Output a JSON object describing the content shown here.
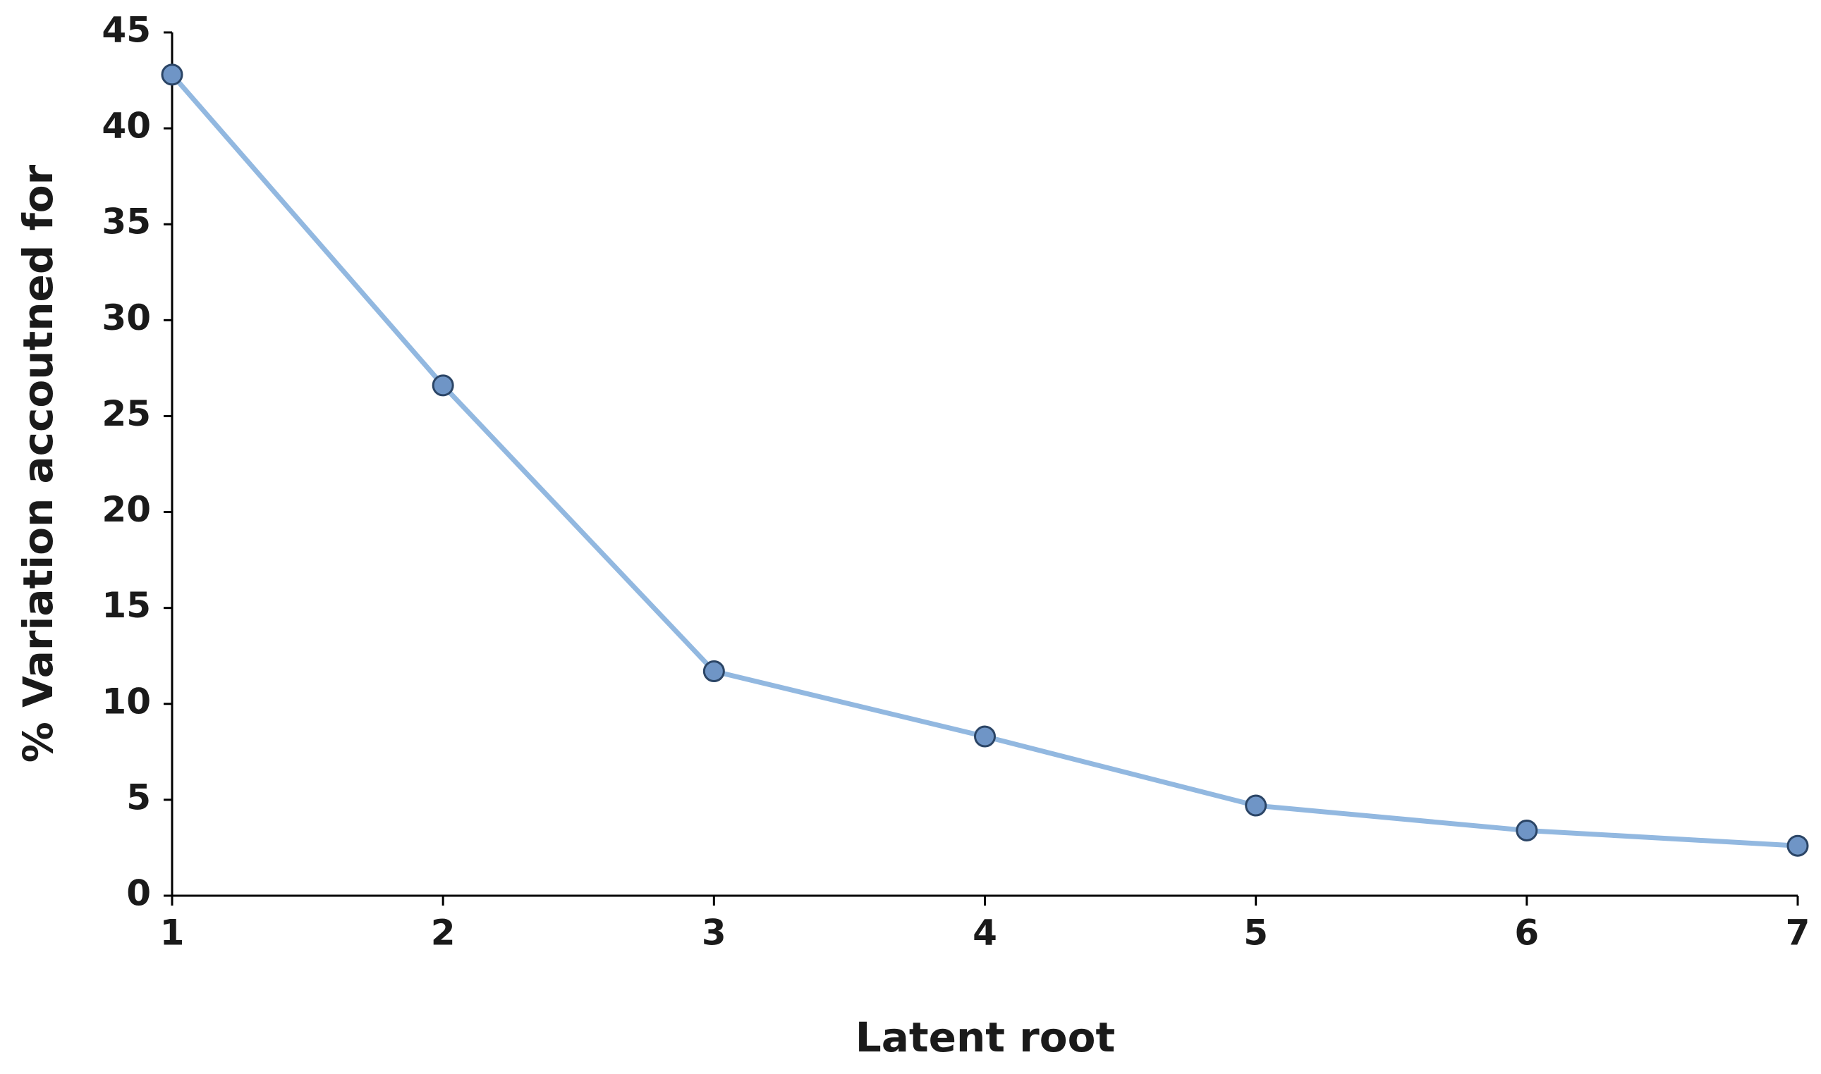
{
  "chart_data": {
    "type": "line",
    "x_label": "Latent root",
    "y_label": "% Variation accoutned for",
    "x": [
      1,
      2,
      3,
      4,
      5,
      6,
      7
    ],
    "values": [
      42.8,
      26.6,
      11.7,
      8.3,
      4.7,
      3.4,
      2.6
    ],
    "color": "#92b8e0",
    "marker_color": "#6f95c6",
    "xlim": [
      1,
      7
    ],
    "xticks": [
      1,
      2,
      3,
      4,
      5,
      6,
      7
    ],
    "ylim": [
      0,
      45
    ],
    "yticks": [
      0,
      5,
      10,
      15,
      20,
      25,
      30,
      35,
      40,
      45
    ],
    "grid": false
  }
}
